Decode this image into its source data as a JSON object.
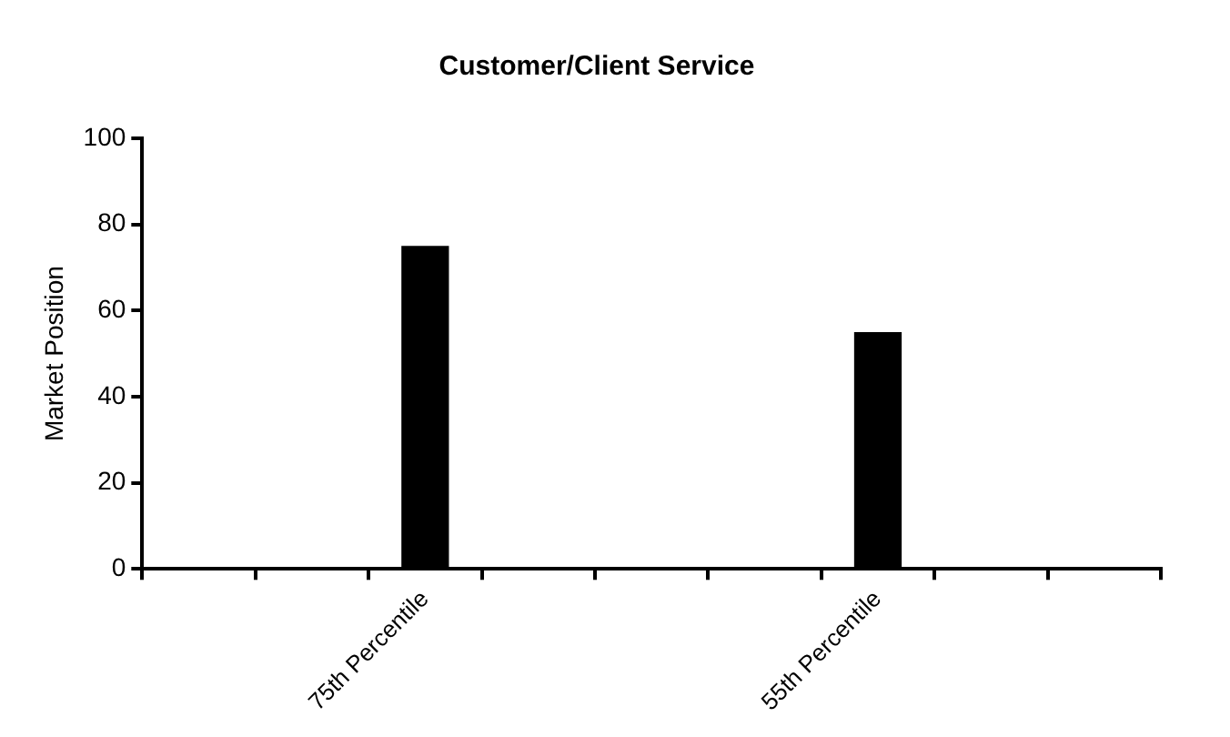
{
  "chart_data": {
    "type": "bar",
    "title": "Customer/Client Service",
    "ylabel": "Market Position",
    "categories": [
      null,
      null,
      "75th Percentile",
      null,
      null,
      null,
      "55th Percentile",
      null,
      null
    ],
    "values": [
      null,
      null,
      75,
      null,
      null,
      null,
      55,
      null,
      null
    ],
    "color": "#000000",
    "ylim": [
      0,
      100
    ],
    "yticks": [
      0,
      20,
      40,
      60,
      80,
      100
    ],
    "grid": false,
    "legend": false
  }
}
